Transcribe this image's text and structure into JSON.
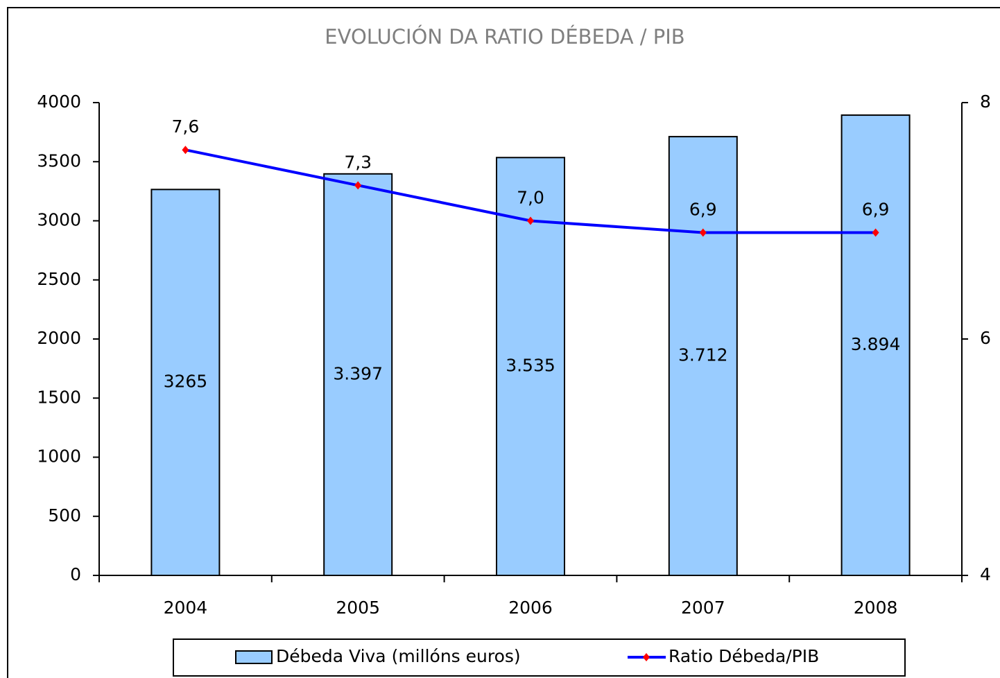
{
  "chart_data": {
    "type": "bar_line",
    "title": "EVOLUCIÓN DA RATIO DÉBEDA / PIB",
    "categories": [
      "2004",
      "2005",
      "2006",
      "2007",
      "2008"
    ],
    "series": [
      {
        "name": "Débeda Viva (millóns euros)",
        "type": "bar",
        "axis": "y",
        "color": "#99ccff",
        "values": [
          3265,
          3397,
          3535,
          3712,
          3894
        ],
        "value_labels": [
          "3265",
          "3.397",
          "3.535",
          "3.712",
          "3.894"
        ]
      },
      {
        "name": "Ratio Débeda/PIB",
        "type": "line",
        "axis": "y2",
        "color": "#0000ff",
        "marker_color": "#ff0000",
        "values": [
          7.6,
          7.3,
          7.0,
          6.9,
          6.9
        ],
        "value_labels": [
          "7,6",
          "7,3",
          "7,0",
          "6,9",
          "6,9"
        ]
      }
    ],
    "ylim": [
      0,
      4000
    ],
    "yticks": [
      0,
      500,
      1000,
      1500,
      2000,
      2500,
      3000,
      3500,
      4000
    ],
    "y2lim": [
      4,
      8
    ],
    "y2ticks": [
      4,
      6,
      8
    ],
    "legend": "bottom"
  }
}
